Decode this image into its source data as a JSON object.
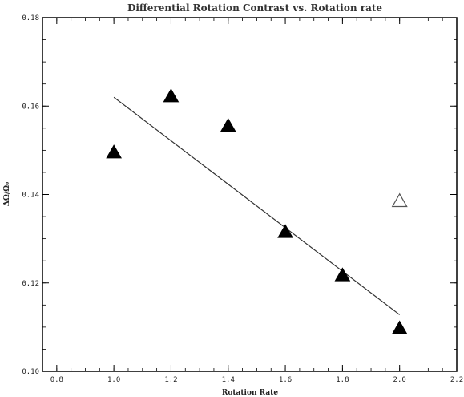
{
  "chart_data": {
    "type": "scatter",
    "title": "Differential Rotation Contrast vs. Rotation rate",
    "xlabel": "Rotation Rate",
    "ylabel": "ΔΩ/Ω₀",
    "xlim": [
      0.75,
      2.2
    ],
    "ylim": [
      0.1,
      0.18
    ],
    "xticks": [
      "0.8",
      "1.0",
      "1.2",
      "1.4",
      "1.6",
      "1.8",
      "2.0",
      "2.2"
    ],
    "yticks": [
      "0.10",
      "0.12",
      "0.14",
      "0.16",
      "0.18"
    ],
    "grid": false,
    "series": [
      {
        "marker": "filled-triangle",
        "color": "#000000",
        "points": [
          {
            "x": 1.0,
            "y": 0.1495
          },
          {
            "x": 1.2,
            "y": 0.1622
          },
          {
            "x": 1.4,
            "y": 0.1555
          },
          {
            "x": 1.6,
            "y": 0.1315
          },
          {
            "x": 1.8,
            "y": 0.1217
          },
          {
            "x": 2.0,
            "y": 0.1097
          }
        ]
      },
      {
        "marker": "open-triangle",
        "color": "#000000",
        "points": [
          {
            "x": 2.0,
            "y": 0.1385
          }
        ]
      }
    ],
    "fit_line": {
      "type": "line",
      "color": "#333333",
      "points": [
        {
          "x": 1.0,
          "y": 0.162
        },
        {
          "x": 2.0,
          "y": 0.1128
        }
      ]
    }
  }
}
